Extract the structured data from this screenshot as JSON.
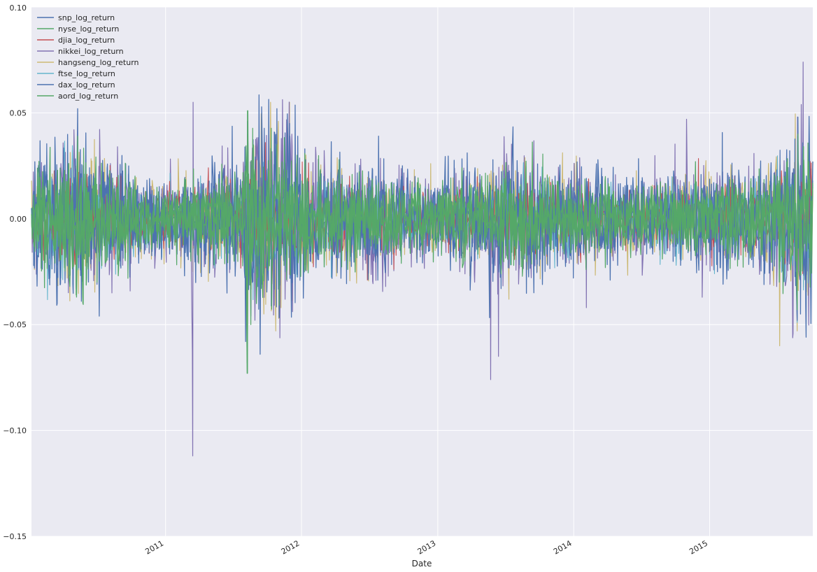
{
  "chart_data": {
    "type": "line",
    "title": "",
    "xlabel": "Date",
    "ylabel": "",
    "xlim": [
      "2010-01-06",
      "2015-10-05"
    ],
    "ylim": [
      -0.15,
      0.1
    ],
    "yticks": [
      0.1,
      0.05,
      0.0,
      -0.05,
      -0.1,
      -0.15
    ],
    "ytick_labels": [
      "0.10",
      "0.05",
      "0.00",
      "−0.05",
      "−0.10",
      "−0.15"
    ],
    "xticks": [
      "2011-01-01",
      "2012-01-01",
      "2013-01-01",
      "2014-01-01",
      "2015-01-01"
    ],
    "xtick_labels": [
      "2011",
      "2012",
      "2013",
      "2014",
      "2015"
    ],
    "grid": true,
    "legend": "upper-left",
    "background_color": "#EAEAF2",
    "series": [
      {
        "name": "snp_log_return",
        "color": "#4C72B0",
        "x": [
          "2010-01-06",
          "2010-05-06",
          "2010-05-20",
          "2010-07-01",
          "2011-03-10",
          "2011-08-08",
          "2011-08-09",
          "2011-08-18",
          "2011-10-04",
          "2011-10-27",
          "2011-12-20",
          "2012-07-26",
          "2013-06-20",
          "2013-10-17",
          "2014-02-03",
          "2015-08-24",
          "2015-08-26",
          "2015-10-05"
        ],
        "y": [
          0.001,
          -0.033,
          -0.039,
          -0.031,
          -0.019,
          -0.068,
          0.046,
          -0.046,
          0.022,
          0.033,
          0.029,
          0.016,
          -0.025,
          0.013,
          -0.023,
          -0.041,
          0.038,
          0.018
        ]
      },
      {
        "name": "nyse_log_return",
        "color": "#55A868",
        "x": [
          "2010-01-06",
          "2010-05-06",
          "2010-05-10",
          "2010-07-01",
          "2011-03-10",
          "2011-08-08",
          "2011-08-09",
          "2011-08-18",
          "2011-10-27",
          "2011-12-20",
          "2012-07-26",
          "2013-06-20",
          "2014-02-03",
          "2015-08-24",
          "2015-08-26",
          "2015-10-05"
        ],
        "y": [
          0.002,
          -0.036,
          0.039,
          -0.03,
          -0.02,
          -0.073,
          0.051,
          -0.05,
          0.035,
          0.03,
          0.017,
          -0.026,
          -0.024,
          -0.043,
          0.04,
          0.017
        ]
      },
      {
        "name": "djia_log_return",
        "color": "#C44E52",
        "x": [
          "2010-01-06",
          "2010-05-06",
          "2010-07-01",
          "2011-03-10",
          "2011-08-08",
          "2011-08-09",
          "2011-08-18",
          "2011-10-27",
          "2011-12-20",
          "2012-07-26",
          "2013-06-20",
          "2014-02-03",
          "2015-08-24",
          "2015-08-26",
          "2015-10-05"
        ],
        "y": [
          0.0,
          -0.032,
          -0.028,
          -0.018,
          -0.056,
          0.04,
          -0.043,
          0.029,
          0.028,
          0.016,
          -0.021,
          -0.021,
          -0.036,
          0.038,
          0.013
        ]
      },
      {
        "name": "nikkei_log_return",
        "color": "#8172B2",
        "x": [
          "2010-01-06",
          "2011-03-11",
          "2011-03-14",
          "2011-03-15",
          "2011-03-16",
          "2011-08-08",
          "2011-08-09",
          "2013-05-23",
          "2013-06-13",
          "2014-02-04",
          "2014-10-31",
          "2015-08-24",
          "2015-09-09",
          "2015-10-05"
        ],
        "y": [
          0.005,
          -0.017,
          -0.063,
          -0.112,
          0.055,
          -0.02,
          -0.041,
          -0.076,
          -0.065,
          -0.042,
          0.047,
          -0.047,
          0.074,
          0.016
        ]
      },
      {
        "name": "hangseng_log_return",
        "color": "#CCB974",
        "x": [
          "2010-01-06",
          "2010-05-06",
          "2011-03-15",
          "2011-08-09",
          "2011-09-22",
          "2011-10-10",
          "2011-10-24",
          "2011-10-31",
          "2011-11-30",
          "2013-06-20",
          "2015-07-08",
          "2015-08-24",
          "2015-08-26",
          "2015-10-05"
        ],
        "y": [
          0.018,
          -0.026,
          -0.025,
          -0.058,
          -0.045,
          0.055,
          -0.053,
          0.046,
          0.055,
          -0.027,
          -0.06,
          -0.053,
          0.04,
          0.027
        ]
      },
      {
        "name": "ftse_log_return",
        "color": "#64B5CD",
        "x": [
          "2010-01-06",
          "2010-05-06",
          "2011-08-08",
          "2011-08-09",
          "2011-10-27",
          "2012-07-26",
          "2013-06-20",
          "2015-01-14",
          "2015-08-24",
          "2015-10-05"
        ],
        "y": [
          0.004,
          -0.031,
          -0.035,
          0.03,
          0.029,
          0.014,
          -0.022,
          -0.026,
          -0.049,
          0.024
        ]
      },
      {
        "name": "dax_log_return",
        "color": "#4C72B0",
        "x": [
          "2010-01-06",
          "2010-05-10",
          "2011-08-04",
          "2011-08-08",
          "2011-09-12",
          "2011-10-27",
          "2011-11-30",
          "2012-01-10",
          "2012-07-26",
          "2013-06-20",
          "2015-08-24",
          "2015-08-26",
          "2015-10-05"
        ],
        "y": [
          0.005,
          0.052,
          -0.058,
          -0.06,
          -0.064,
          0.052,
          0.045,
          0.033,
          0.039,
          -0.033,
          -0.048,
          0.048,
          0.027
        ]
      },
      {
        "name": "aord_log_return",
        "color": "#55A868",
        "x": [
          "2010-01-06",
          "2010-05-07",
          "2010-05-24",
          "2011-08-09",
          "2011-08-10",
          "2015-08-24",
          "2015-10-05"
        ],
        "y": [
          0.002,
          -0.037,
          -0.04,
          -0.073,
          0.051,
          -0.04,
          0.015
        ]
      }
    ]
  }
}
